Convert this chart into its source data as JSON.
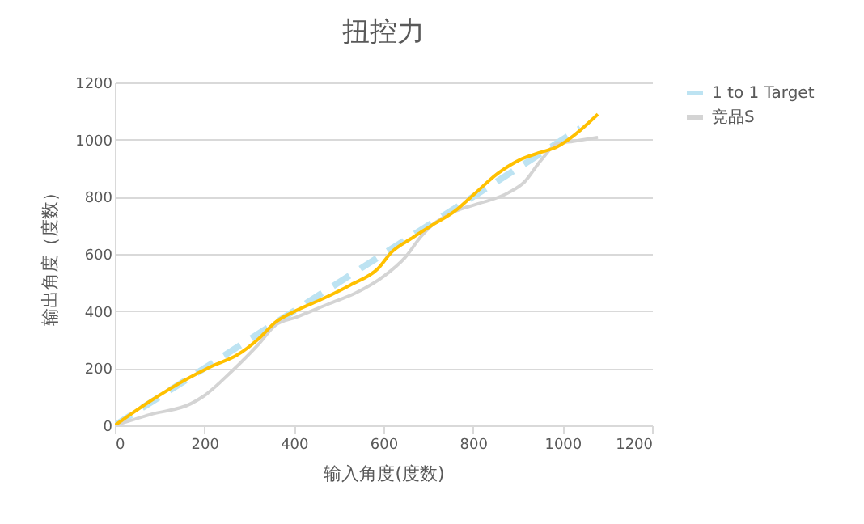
{
  "chart_data": {
    "type": "line",
    "title": "扭控力",
    "xlabel": "输入角度(度数)",
    "ylabel": "输出角度（度数）",
    "xlim": [
      0,
      1200
    ],
    "xticks": [
      0,
      200,
      400,
      600,
      800,
      1000,
      1200
    ],
    "ylim": [
      0,
      1200
    ],
    "yticks": [
      0,
      200,
      400,
      600,
      800,
      1000,
      1200
    ],
    "grid": "y",
    "legend": "right",
    "marker": "none",
    "series": [
      {
        "name": "1 to 1 Target",
        "color": "#bde3f2",
        "line_style": "dashed",
        "x": [
          0,
          1040
        ],
        "values": [
          0,
          1040
        ]
      },
      {
        "name": "竞品S",
        "color": "#d4d4d4",
        "line_style": "solid",
        "x": [
          0,
          79,
          170,
          200,
          261,
          321,
          358,
          406,
          479,
          539,
          600,
          648,
          685,
          709,
          758,
          806,
          879,
          915,
          952,
          988,
          1024,
          1079
        ],
        "values": [
          0,
          38,
          76,
          104,
          189,
          284,
          350,
          379,
          426,
          464,
          521,
          587,
          663,
          701,
          748,
          773,
          814,
          852,
          928,
          985,
          994,
          1008
        ]
      },
      {
        "color": "#ffc000",
        "line_style": "solid",
        "x": [
          0,
          79,
          164,
          218,
          273,
          321,
          358,
          400,
          467,
          527,
          588,
          618,
          661,
          709,
          758,
          806,
          855,
          903,
          952,
          988,
          1024,
          1079
        ],
        "values": [
          0,
          85,
          165,
          208,
          246,
          303,
          360,
          398,
          445,
          492,
          549,
          606,
          653,
          701,
          748,
          814,
          881,
          928,
          956,
          975,
          1013,
          1089
        ]
      }
    ]
  }
}
